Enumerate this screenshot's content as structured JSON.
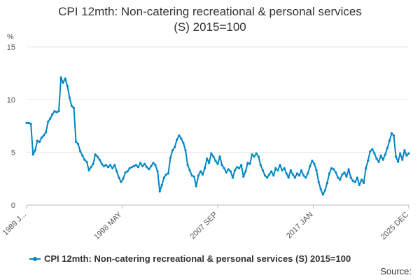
{
  "chart_data": {
    "type": "line",
    "title_line1": "CPI 12mth: Non-catering recreational & personal services",
    "title_line2": "(S) 2015=100",
    "ylabel": "%",
    "ylim": [
      0,
      15
    ],
    "yticks": [
      "0",
      "5",
      "10",
      "15"
    ],
    "xticks": [
      "1989 J...",
      "1998 MAY",
      "2007 SEP",
      "2017 JAN",
      "2025 DEC"
    ],
    "grid": true,
    "legend_position": "bottom",
    "series": [
      {
        "name": "CPI 12mth: Non-catering recreational & personal services (S) 2015=100",
        "color": "#0086c3",
        "x_start": 1989.0,
        "x_end": 2025.917,
        "values": [
          7.8,
          7.8,
          7.7,
          4.8,
          5.2,
          6.1,
          6.0,
          6.4,
          6.6,
          6.9,
          7.9,
          8.2,
          8.6,
          8.9,
          8.8,
          8.9,
          12.1,
          11.6,
          12.0,
          11.3,
          10.2,
          9.4,
          9.2,
          6.0,
          5.8,
          5.1,
          4.7,
          4.3,
          4.1,
          3.3,
          3.6,
          3.9,
          4.8,
          4.6,
          4.3,
          3.9,
          3.7,
          3.8,
          3.6,
          3.8,
          3.5,
          3.8,
          3.2,
          2.6,
          2.2,
          2.5,
          3.1,
          3.2,
          3.5,
          3.6,
          3.7,
          3.8,
          3.6,
          4.0,
          3.7,
          3.9,
          3.6,
          3.4,
          3.7,
          4.0,
          3.8,
          3.2,
          1.3,
          1.9,
          2.6,
          2.9,
          3.0,
          4.5,
          5.2,
          5.5,
          6.2,
          6.6,
          6.3,
          5.9,
          5.2,
          3.8,
          3.3,
          2.8,
          2.7,
          1.8,
          2.8,
          3.2,
          2.9,
          3.5,
          4.4,
          4.0,
          4.9,
          4.6,
          4.2,
          3.9,
          4.6,
          3.8,
          3.5,
          3.1,
          3.4,
          3.2,
          2.6,
          3.3,
          3.6,
          3.5,
          3.8,
          2.7,
          3.2,
          4.0,
          3.9,
          4.8,
          4.6,
          4.9,
          4.6,
          3.8,
          3.3,
          2.8,
          2.6,
          2.9,
          3.2,
          2.8,
          3.5,
          3.3,
          3.8,
          3.3,
          3.5,
          3.0,
          2.6,
          3.3,
          2.9,
          2.6,
          3.0,
          2.8,
          3.3,
          2.8,
          2.6,
          3.0,
          3.7,
          4.2,
          3.9,
          3.3,
          2.2,
          1.5,
          1.0,
          1.4,
          2.1,
          3.0,
          3.5,
          3.4,
          3.1,
          2.6,
          2.4,
          2.9,
          3.1,
          2.7,
          3.4,
          2.6,
          2.3,
          2.2,
          2.6,
          1.9,
          2.4,
          2.1,
          3.5,
          4.2,
          5.1,
          5.3,
          4.9,
          4.4,
          4.1,
          4.7,
          4.3,
          4.8,
          5.4,
          6.1,
          6.8,
          6.6,
          4.6,
          4.1,
          4.9,
          4.3,
          5.2,
          4.7,
          4.9
        ]
      }
    ],
    "source": "Source:"
  }
}
